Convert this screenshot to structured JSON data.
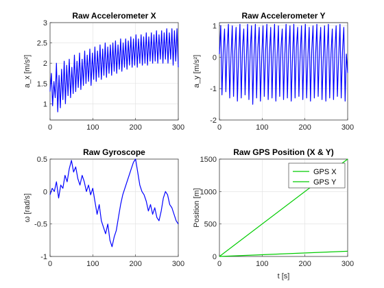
{
  "chart_data": [
    {
      "type": "line",
      "title": "Raw Accelerometer X",
      "xlabel": "",
      "ylabel": "a_x [m/s²]",
      "xlim": [
        0,
        300
      ],
      "ylim": [
        0.6,
        3
      ],
      "xticks": [
        0,
        100,
        200,
        300
      ],
      "yticks": [
        1,
        1.5,
        2,
        2.5,
        3
      ],
      "grid": true,
      "color": "#0000ff",
      "series": [
        {
          "x": [
            0,
            3,
            6,
            9,
            12,
            15,
            18,
            21,
            24,
            27,
            30,
            33,
            36,
            39,
            42,
            45,
            48,
            51,
            54,
            57,
            60,
            63,
            66,
            69,
            72,
            75,
            78,
            81,
            84,
            87,
            90,
            93,
            96,
            99,
            102,
            105,
            108,
            111,
            114,
            117,
            120,
            123,
            126,
            129,
            132,
            135,
            138,
            141,
            144,
            147,
            150,
            153,
            156,
            159,
            162,
            165,
            168,
            171,
            174,
            177,
            180,
            183,
            186,
            189,
            192,
            195,
            198,
            201,
            204,
            207,
            210,
            213,
            216,
            219,
            222,
            225,
            228,
            231,
            234,
            237,
            240,
            243,
            246,
            249,
            252,
            255,
            258,
            261,
            264,
            267,
            270,
            273,
            276,
            279,
            282,
            285,
            288,
            291,
            294,
            297,
            300
          ],
          "values": [
            1.3,
            1.75,
            0.95,
            1.55,
            1.15,
            2.0,
            0.8,
            1.7,
            0.9,
            1.85,
            1.1,
            2.05,
            1.0,
            1.95,
            1.2,
            2.1,
            1.15,
            1.9,
            1.25,
            2.2,
            1.3,
            2.05,
            1.4,
            2.25,
            1.35,
            2.1,
            1.45,
            2.3,
            1.5,
            2.2,
            1.55,
            2.35,
            1.45,
            2.25,
            1.6,
            2.4,
            1.55,
            2.3,
            1.65,
            2.45,
            1.6,
            2.35,
            1.7,
            2.5,
            1.65,
            2.4,
            1.75,
            2.45,
            1.7,
            2.5,
            1.8,
            2.55,
            1.75,
            2.45,
            1.85,
            2.6,
            1.8,
            2.5,
            1.9,
            2.6,
            1.85,
            2.55,
            1.95,
            2.65,
            1.9,
            2.6,
            1.95,
            2.7,
            1.9,
            2.6,
            2.0,
            2.7,
            1.95,
            2.65,
            2.0,
            2.75,
            1.95,
            2.65,
            2.05,
            2.75,
            2.0,
            2.7,
            2.05,
            2.8,
            2.0,
            2.7,
            2.1,
            2.8,
            2.0,
            2.75,
            2.1,
            2.85,
            2.0,
            2.75,
            2.1,
            2.85,
            1.95,
            2.8,
            2.05,
            2.85,
            1.9
          ]
        }
      ]
    },
    {
      "type": "line",
      "title": "Raw Accelerometer Y",
      "xlabel": "",
      "ylabel": "a_y [m/s²]",
      "xlim": [
        0,
        300
      ],
      "ylim": [
        -2,
        1.1
      ],
      "xticks": [
        0,
        100,
        200,
        300
      ],
      "yticks": [
        -2,
        -1,
        0,
        1
      ],
      "grid": true,
      "color": "#0000ff",
      "series": [
        {
          "x": [
            0,
            3,
            6,
            9,
            12,
            15,
            18,
            21,
            24,
            27,
            30,
            33,
            36,
            39,
            42,
            45,
            48,
            51,
            54,
            57,
            60,
            63,
            66,
            69,
            72,
            75,
            78,
            81,
            84,
            87,
            90,
            93,
            96,
            99,
            102,
            105,
            108,
            111,
            114,
            117,
            120,
            123,
            126,
            129,
            132,
            135,
            138,
            141,
            144,
            147,
            150,
            153,
            156,
            159,
            162,
            165,
            168,
            171,
            174,
            177,
            180,
            183,
            186,
            189,
            192,
            195,
            198,
            201,
            204,
            207,
            210,
            213,
            216,
            219,
            222,
            225,
            228,
            231,
            234,
            237,
            240,
            243,
            246,
            249,
            252,
            255,
            258,
            261,
            264,
            267,
            270,
            273,
            276,
            279,
            282,
            285,
            288,
            291,
            294,
            297,
            300
          ],
          "values": [
            0.1,
            1.0,
            -1.2,
            0.2,
            0.9,
            -1.1,
            0.3,
            1.05,
            -1.3,
            0.0,
            1.0,
            -1.25,
            0.2,
            0.95,
            -1.4,
            0.1,
            1.05,
            -1.3,
            0.3,
            0.9,
            -1.2,
            0.0,
            1.05,
            -1.35,
            0.2,
            1.0,
            -1.5,
            0.1,
            1.05,
            -1.3,
            0.3,
            0.95,
            -1.4,
            0.0,
            1.0,
            -1.25,
            0.2,
            1.05,
            -1.35,
            0.1,
            0.95,
            -1.3,
            0.2,
            1.05,
            -1.4,
            0.0,
            1.0,
            -1.25,
            0.3,
            0.9,
            -1.35,
            0.1,
            1.05,
            -1.3,
            0.2,
            1.0,
            -1.4,
            0.0,
            1.05,
            -1.3,
            0.3,
            0.95,
            -1.25,
            0.1,
            1.0,
            -1.35,
            0.2,
            1.05,
            -1.3,
            0.0,
            0.95,
            -1.4,
            0.2,
            1.0,
            -1.3,
            0.1,
            1.05,
            -1.25,
            0.3,
            0.95,
            -1.35,
            0.0,
            1.0,
            -1.4,
            0.2,
            1.05,
            -1.3,
            0.1,
            0.9,
            -1.35,
            0.2,
            1.0,
            -1.25,
            0.0,
            1.05,
            -1.3,
            0.2,
            0.95,
            -1.4,
            0.1,
            -0.5
          ]
        }
      ]
    },
    {
      "type": "line",
      "title": "Raw Gyroscope",
      "xlabel": "",
      "ylabel": "ω [rad/s]",
      "xlim": [
        0,
        300
      ],
      "ylim": [
        -1,
        0.5
      ],
      "xticks": [
        0,
        100,
        200,
        300
      ],
      "yticks": [
        -1,
        -0.5,
        0,
        0.5
      ],
      "grid": true,
      "color": "#0000ff",
      "series": [
        {
          "x": [
            0,
            5,
            10,
            15,
            20,
            25,
            30,
            35,
            40,
            45,
            50,
            55,
            60,
            65,
            70,
            75,
            80,
            85,
            90,
            95,
            100,
            105,
            110,
            115,
            120,
            125,
            130,
            135,
            140,
            145,
            150,
            155,
            160,
            165,
            170,
            175,
            180,
            185,
            190,
            195,
            200,
            205,
            210,
            215,
            220,
            225,
            230,
            235,
            240,
            245,
            250,
            255,
            260,
            265,
            270,
            275,
            280,
            285,
            290,
            295,
            300
          ],
          "values": [
            -0.05,
            0.05,
            0.0,
            0.15,
            -0.1,
            0.1,
            0.05,
            0.25,
            0.15,
            0.35,
            0.48,
            0.3,
            0.38,
            0.2,
            0.1,
            0.25,
            0.15,
            0.0,
            0.1,
            -0.05,
            0.05,
            -0.15,
            -0.35,
            -0.2,
            -0.45,
            -0.55,
            -0.65,
            -0.5,
            -0.75,
            -0.85,
            -0.7,
            -0.6,
            -0.4,
            -0.2,
            -0.05,
            0.05,
            0.15,
            0.25,
            0.35,
            0.45,
            0.5,
            0.3,
            0.1,
            0.0,
            -0.05,
            -0.15,
            -0.3,
            -0.2,
            -0.35,
            -0.25,
            -0.4,
            -0.45,
            -0.3,
            -0.1,
            0.0,
            -0.05,
            -0.2,
            -0.25,
            -0.35,
            -0.45,
            -0.5
          ]
        }
      ]
    },
    {
      "type": "line",
      "title": "Raw GPS Position (X & Y)",
      "xlabel": "t [s]",
      "ylabel": "Position [m]",
      "xlim": [
        0,
        300
      ],
      "ylim": [
        0,
        1500
      ],
      "xticks": [
        0,
        100,
        200,
        300
      ],
      "yticks": [
        0,
        500,
        1000,
        1500
      ],
      "grid": true,
      "legend": "top-right",
      "series": [
        {
          "name": "GPS X",
          "color": "#00cc00",
          "x": [
            0,
            300
          ],
          "values": [
            0,
            1500
          ]
        },
        {
          "name": "GPS Y",
          "color": "#00cc00",
          "x": [
            0,
            300
          ],
          "values": [
            0,
            80
          ]
        }
      ]
    }
  ]
}
